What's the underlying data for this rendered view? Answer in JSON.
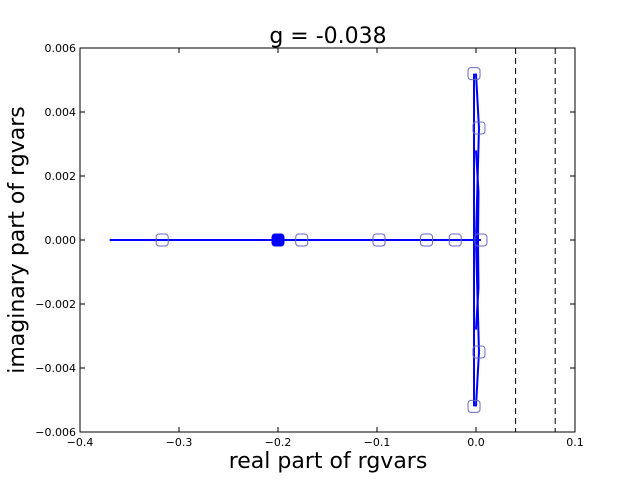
{
  "chart_data": {
    "type": "line",
    "title": "g = -0.038",
    "xlabel": "real part of rgvars",
    "ylabel": "imaginary part of rgvars",
    "xlim": [
      -0.4,
      0.1
    ],
    "ylim": [
      -0.006,
      0.006
    ],
    "xticks": [
      -0.4,
      -0.3,
      -0.2,
      -0.1,
      0.0,
      0.1
    ],
    "yticks": [
      -0.006,
      -0.004,
      -0.002,
      0.0,
      0.002,
      0.004,
      0.006
    ],
    "xtick_labels": [
      "−0.4",
      "−0.3",
      "−0.2",
      "−0.1",
      "0.0",
      "0.1"
    ],
    "ytick_labels": [
      "−0.006",
      "−0.004",
      "−0.002",
      "0.000",
      "0.002",
      "0.004",
      "0.006"
    ],
    "grid": false,
    "colors": {
      "line": "#0000ff",
      "marker_edge": "#6666cc",
      "filled_marker": "#0000ff",
      "reference": "#000000"
    },
    "reference_lines_x": [
      0.04,
      0.08
    ],
    "series": [
      {
        "style": "line",
        "x": [
          -0.37,
          0.005
        ],
        "y": [
          0.0,
          0.0
        ]
      },
      {
        "style": "line",
        "x": [
          -0.002,
          -0.002
        ],
        "y": [
          0.0052,
          -0.0052
        ]
      },
      {
        "style": "line",
        "x": [
          0.0,
          0.003,
          0.0,
          0.003,
          0.0
        ],
        "y": [
          0.0052,
          0.0035,
          0.0,
          -0.0035,
          -0.0052
        ]
      },
      {
        "style": "line",
        "x": [
          0.0,
          0.0025,
          0.002,
          0.0025,
          0.0
        ],
        "y": [
          0.0028,
          0.0015,
          0.0,
          -0.0015,
          -0.0028
        ]
      }
    ],
    "points": [
      {
        "x": -0.317,
        "y": 0.0,
        "filled": false
      },
      {
        "x": -0.2,
        "y": 0.0,
        "filled": true
      },
      {
        "x": -0.176,
        "y": 0.0,
        "filled": false
      },
      {
        "x": -0.098,
        "y": 0.0,
        "filled": false
      },
      {
        "x": -0.05,
        "y": 0.0,
        "filled": false
      },
      {
        "x": -0.021,
        "y": 0.0,
        "filled": false
      },
      {
        "x": 0.005,
        "y": 0.0,
        "filled": false
      },
      {
        "x": -0.002,
        "y": 0.0052,
        "filled": false
      },
      {
        "x": -0.002,
        "y": -0.0052,
        "filled": false
      },
      {
        "x": 0.003,
        "y": 0.0035,
        "filled": false
      },
      {
        "x": 0.003,
        "y": -0.0035,
        "filled": false
      }
    ]
  }
}
